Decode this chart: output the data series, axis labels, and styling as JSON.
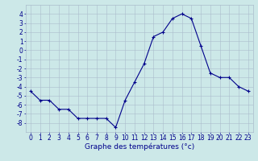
{
  "hours": [
    0,
    1,
    2,
    3,
    4,
    5,
    6,
    7,
    8,
    9,
    10,
    11,
    12,
    13,
    14,
    15,
    16,
    17,
    18,
    19,
    20,
    21,
    22,
    23
  ],
  "temperatures": [
    -4.5,
    -5.5,
    -5.5,
    -6.5,
    -6.5,
    -7.5,
    -7.5,
    -7.5,
    -7.5,
    -8.5,
    -5.5,
    -3.5,
    -1.5,
    1.5,
    2.0,
    3.5,
    4.0,
    3.5,
    0.5,
    -2.5,
    -3.0,
    -3.0,
    -4.0,
    -4.5
  ],
  "line_color": "#00008B",
  "marker": "+",
  "marker_size": 3,
  "marker_linewidth": 0.8,
  "line_width": 0.8,
  "xlabel": "Graphe des températures (°c)",
  "xlabel_fontsize": 6.5,
  "bg_color": "#cce8e8",
  "grid_color": "#aabccc",
  "tick_color": "#00008B",
  "axis_label_color": "#00008B",
  "ylim": [
    -9,
    5
  ],
  "xlim": [
    -0.5,
    23.5
  ],
  "yticks": [
    -8,
    -7,
    -6,
    -5,
    -4,
    -3,
    -2,
    -1,
    0,
    1,
    2,
    3,
    4
  ],
  "xticks": [
    0,
    1,
    2,
    3,
    4,
    5,
    6,
    7,
    8,
    9,
    10,
    11,
    12,
    13,
    14,
    15,
    16,
    17,
    18,
    19,
    20,
    21,
    22,
    23
  ],
  "tick_fontsize": 5.5
}
